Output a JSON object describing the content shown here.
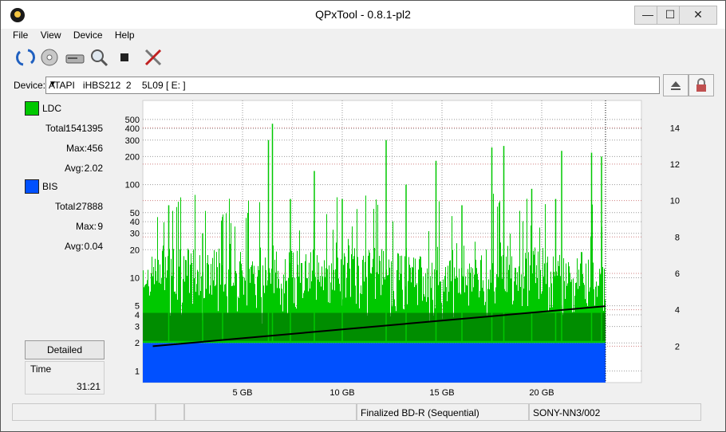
{
  "window": {
    "title": "QPxTool - 0.8.1-pl2"
  },
  "menu": [
    "File",
    "View",
    "Device",
    "Help"
  ],
  "toolbar_icons": [
    "refresh-icon",
    "disc-scan-icon",
    "drive-icon",
    "zoom-icon",
    "stop-icon",
    "tools-icon"
  ],
  "device": {
    "label": "Device:",
    "value": "ATAPI   iHBS212  2    5L09 [ E: ]"
  },
  "legend": {
    "ldc": {
      "name": "LDC",
      "color": "#00c800",
      "total_label": "Total:",
      "total": "1541395",
      "max_label": "Max:",
      "max": "456",
      "avg_label": "Avg:",
      "avg": "2.02"
    },
    "bis": {
      "name": "BIS",
      "color": "#0050ff",
      "total_label": "Total:",
      "total": "27888",
      "max_label": "Max:",
      "max": "9",
      "avg_label": "Avg:",
      "avg": "0.04"
    }
  },
  "detailed_button": "Detailed",
  "time": {
    "label": "Time",
    "value": "31:21"
  },
  "status": {
    "disc": "Finalized BD-R (Sequential)",
    "media": "SONY-NN3/002"
  },
  "chart_data": {
    "type": "area",
    "x_ticks": [
      "5 GB",
      "10 GB",
      "15 GB",
      "20 GB"
    ],
    "x_tick_values": [
      5,
      10,
      15,
      20
    ],
    "xlim": [
      0,
      25
    ],
    "y_left_scale": "log",
    "y_left_ticks": [
      1,
      2,
      3,
      4,
      5,
      10,
      20,
      30,
      40,
      50,
      100,
      200,
      300,
      400,
      500
    ],
    "y_left_lim": [
      0.75,
      800
    ],
    "y_right_ticks": [
      2,
      4,
      6,
      8,
      10,
      12,
      14
    ],
    "y_right_lim": [
      0,
      15.5
    ],
    "series": [
      {
        "name": "LDC",
        "color": "#00c800"
      },
      {
        "name": "BIS",
        "color": "#0050ff"
      },
      {
        "name": "Speed",
        "color": "#000000"
      }
    ],
    "speed_line": {
      "x": [
        0.5,
        23.2
      ],
      "y": [
        2.0,
        4.2
      ]
    },
    "ldc_peaks": [
      {
        "x": 1.3,
        "y": 60
      },
      {
        "x": 3.0,
        "y": 30
      },
      {
        "x": 4.0,
        "y": 45
      },
      {
        "x": 6.5,
        "y": 450
      },
      {
        "x": 6.3,
        "y": 300
      },
      {
        "x": 7.4,
        "y": 70
      },
      {
        "x": 8.6,
        "y": 140
      },
      {
        "x": 10.0,
        "y": 70
      },
      {
        "x": 12.2,
        "y": 300
      },
      {
        "x": 13.2,
        "y": 100
      },
      {
        "x": 14.7,
        "y": 180
      },
      {
        "x": 16.0,
        "y": 60
      },
      {
        "x": 17.5,
        "y": 250
      },
      {
        "x": 18.1,
        "y": 260
      },
      {
        "x": 19.5,
        "y": 90
      },
      {
        "x": 20.7,
        "y": 70
      },
      {
        "x": 21.0,
        "y": 230
      },
      {
        "x": 22.5,
        "y": 220
      },
      {
        "x": 23.0,
        "y": 200
      }
    ]
  }
}
